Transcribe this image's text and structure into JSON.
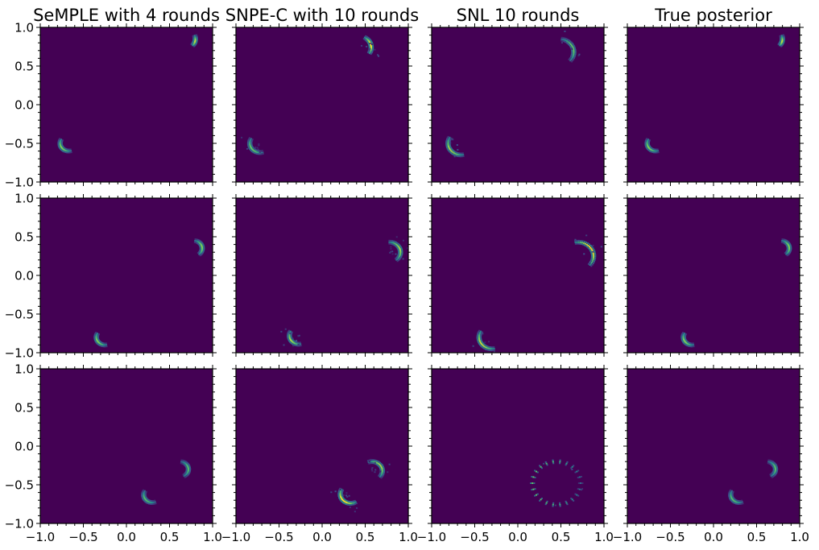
{
  "chart_data": {
    "type": "heatmap",
    "xlim": [
      -1.0,
      1.0
    ],
    "ylim": [
      -1.0,
      1.0
    ],
    "x_ticks": [
      "−1.0",
      "−0.5",
      "0.0",
      "0.5",
      "1.0"
    ],
    "y_ticks": [
      "−1.0",
      "−0.5",
      "0.0",
      "0.5",
      "1.0"
    ],
    "column_titles": [
      "SeMPLE with 4 rounds",
      "SNPE-C with 10 rounds",
      "SNL 10 rounds",
      "True posterior"
    ],
    "grid": false,
    "colormap": "viridis",
    "colors": {
      "background": "#440154",
      "low": "#3b528b",
      "mid": "#21918c",
      "high": "#5ec962",
      "peak": "#fde725"
    },
    "panels": [
      [
        {
          "modes": [
            {
              "cx": 0.67,
              "cy": 0.85,
              "r": 0.13,
              "a0": -40,
              "a1": 20,
              "peak": 0.9
            },
            {
              "cx": -0.67,
              "cy": -0.5,
              "r": 0.1,
              "a0": 150,
              "a1": 285,
              "peak": 0.8
            }
          ],
          "halo": 0.0
        },
        {
          "modes": [
            {
              "cx": 0.42,
              "cy": 0.74,
              "r": 0.15,
              "a0": -30,
              "a1": 60,
              "peak": 1.0
            },
            {
              "cx": -0.72,
              "cy": -0.5,
              "r": 0.12,
              "a0": 150,
              "a1": 285,
              "peak": 0.75
            }
          ],
          "halo": 0.25
        },
        {
          "modes": [
            {
              "cx": 0.48,
              "cy": 0.68,
              "r": 0.17,
              "a0": -40,
              "a1": 80,
              "peak": 0.75
            },
            {
              "cx": -0.66,
              "cy": -0.5,
              "r": 0.15,
              "a0": 150,
              "a1": 280,
              "peak": 0.85
            }
          ],
          "halo": 0.15
        },
        {
          "modes": [
            {
              "cx": 0.67,
              "cy": 0.85,
              "r": 0.13,
              "a0": -40,
              "a1": 20,
              "peak": 0.9
            },
            {
              "cx": -0.67,
              "cy": -0.5,
              "r": 0.1,
              "a0": 150,
              "a1": 285,
              "peak": 0.8
            }
          ],
          "halo": 0.0
        }
      ],
      [
        {
          "modes": [
            {
              "cx": 0.78,
              "cy": 0.35,
              "r": 0.1,
              "a0": -50,
              "a1": 80,
              "peak": 0.8
            },
            {
              "cx": -0.25,
              "cy": -0.8,
              "r": 0.1,
              "a0": 150,
              "a1": 280,
              "peak": 0.8
            }
          ],
          "halo": 0.0
        },
        {
          "modes": [
            {
              "cx": 0.78,
              "cy": 0.3,
              "r": 0.13,
              "a0": -50,
              "a1": 90,
              "peak": 0.85
            },
            {
              "cx": -0.27,
              "cy": -0.78,
              "r": 0.11,
              "a0": 150,
              "a1": 280,
              "peak": 0.85
            }
          ],
          "halo": 0.3
        },
        {
          "modes": [
            {
              "cx": 0.7,
              "cy": 0.25,
              "r": 0.18,
              "a0": -40,
              "a1": 100,
              "peak": 1.0
            },
            {
              "cx": -0.3,
              "cy": -0.8,
              "r": 0.15,
              "a0": 150,
              "a1": 280,
              "peak": 0.9
            }
          ],
          "halo": 0.15
        },
        {
          "modes": [
            {
              "cx": 0.78,
              "cy": 0.35,
              "r": 0.1,
              "a0": -50,
              "a1": 80,
              "peak": 0.8
            },
            {
              "cx": -0.25,
              "cy": -0.8,
              "r": 0.1,
              "a0": 150,
              "a1": 280,
              "peak": 0.8
            }
          ],
          "halo": 0.0
        }
      ],
      [
        {
          "modes": [
            {
              "cx": 0.62,
              "cy": -0.3,
              "r": 0.1,
              "a0": -60,
              "a1": 80,
              "peak": 0.7
            },
            {
              "cx": 0.3,
              "cy": -0.63,
              "r": 0.1,
              "a0": 150,
              "a1": 290,
              "peak": 0.7
            }
          ],
          "halo": 0.0
        },
        {
          "modes": [
            {
              "cx": 0.58,
              "cy": -0.32,
              "r": 0.12,
              "a0": -40,
              "a1": 110,
              "peak": 0.85
            },
            {
              "cx": 0.33,
              "cy": -0.62,
              "r": 0.12,
              "a0": 150,
              "a1": 300,
              "peak": 1.0
            }
          ],
          "halo": 0.3
        },
        {
          "modes": [
            {
              "cx": 0.45,
              "cy": -0.48,
              "r": 0.28,
              "a0": 0,
              "a1": 360,
              "peak": 0.75
            }
          ],
          "halo": 0.1
        },
        {
          "modes": [
            {
              "cx": 0.62,
              "cy": -0.3,
              "r": 0.1,
              "a0": -60,
              "a1": 80,
              "peak": 0.7
            },
            {
              "cx": 0.3,
              "cy": -0.63,
              "r": 0.1,
              "a0": 150,
              "a1": 290,
              "peak": 0.7
            }
          ],
          "halo": 0.0
        }
      ]
    ]
  }
}
